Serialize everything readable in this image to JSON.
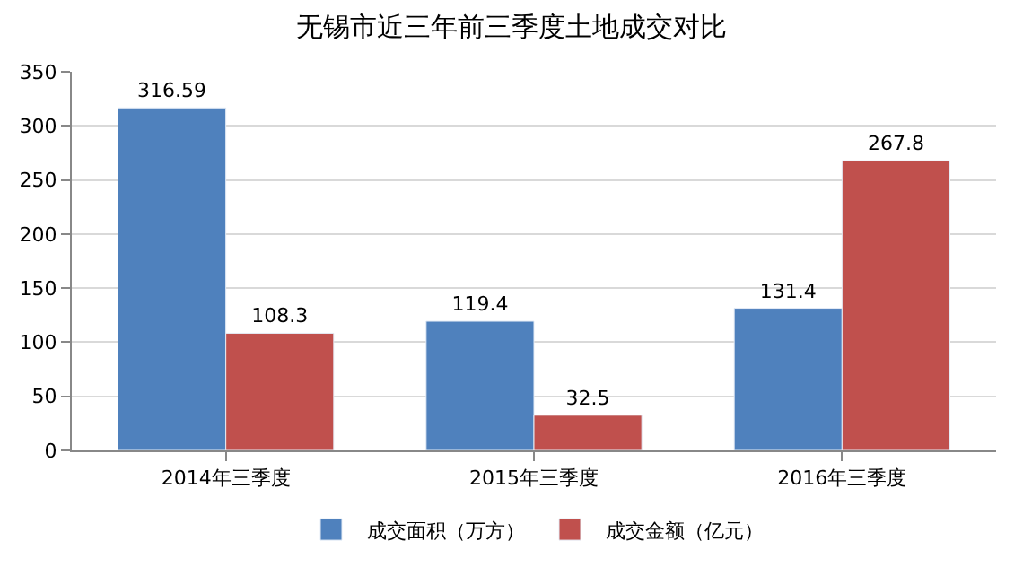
{
  "chart_data": {
    "type": "bar",
    "title": "无锡市近三年前三季度土地成交对比",
    "categories": [
      "2014年三季度",
      "2015年三季度",
      "2016年三季度"
    ],
    "series": [
      {
        "name": "成交面积（万方）",
        "color": "#4f81bd",
        "values": [
          316.59,
          119.4,
          131.4
        ]
      },
      {
        "name": "成交金额（亿元）",
        "color": "#c0504d",
        "values": [
          108.3,
          32.5,
          267.8
        ]
      }
    ],
    "ylim": [
      0,
      350
    ],
    "yticks": [
      0,
      50,
      100,
      150,
      200,
      250,
      300,
      350
    ],
    "grid": "y",
    "legend": "bottom",
    "data_labels": true
  }
}
